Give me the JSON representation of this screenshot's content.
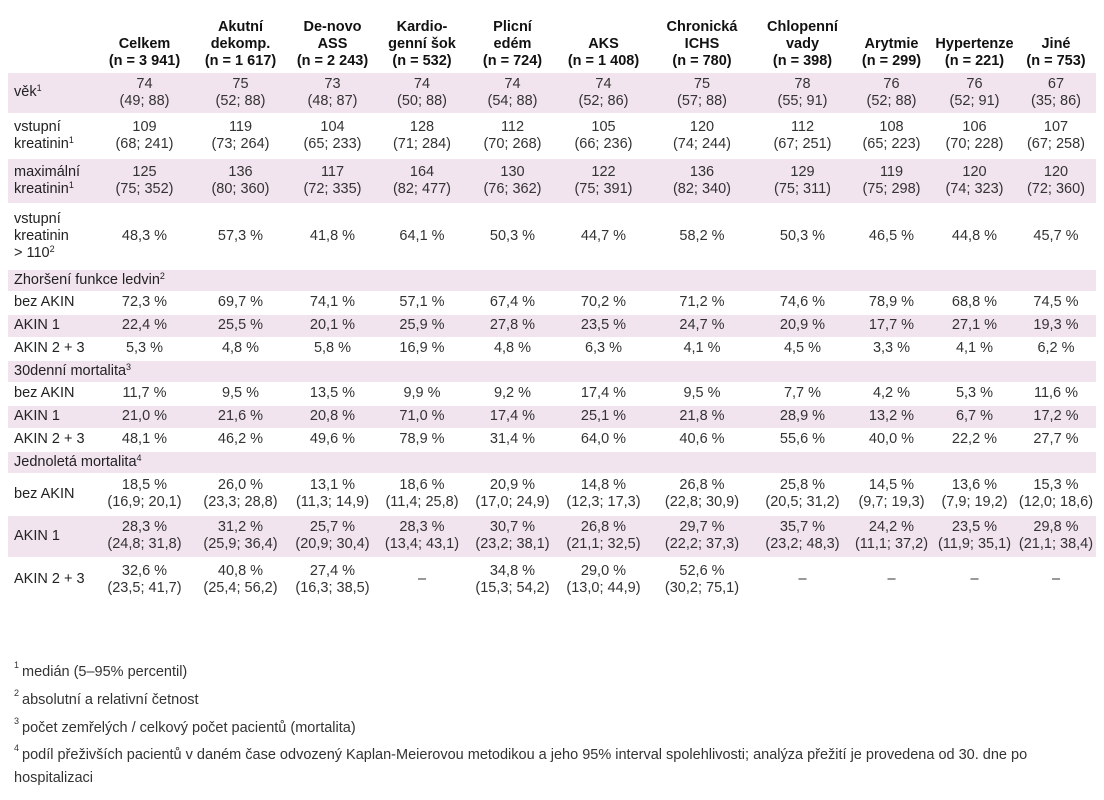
{
  "header": [
    "",
    [
      "Celkem",
      "(n = 3 941)"
    ],
    [
      "Akutní",
      "dekomp.",
      "(n = 1 617)"
    ],
    [
      "De-novo",
      "ASS",
      "(n = 2 243)"
    ],
    [
      "Kardio-",
      "genní šok",
      "(n = 532)"
    ],
    [
      "Plicní",
      "edém",
      "(n = 724)"
    ],
    [
      "AKS",
      "(n = 1 408)"
    ],
    [
      "Chronická",
      "ICHS",
      "(n = 780)"
    ],
    [
      "Chlopenní",
      "vady",
      "(n = 398)"
    ],
    [
      "Arytmie",
      "(n = 299)"
    ],
    [
      "Hypertenze",
      "(n = 221)"
    ],
    [
      "Jiné",
      "(n = 753)"
    ]
  ],
  "rows": [
    {
      "type": "data",
      "shade": true,
      "label": [
        "věk"
      ],
      "sup": "1",
      "cells": [
        [
          "74",
          "(49; 88)"
        ],
        [
          "75",
          "(52; 88)"
        ],
        [
          "73",
          "(48; 87)"
        ],
        [
          "74",
          "(50; 88)"
        ],
        [
          "74",
          "(54; 88)"
        ],
        [
          "74",
          "(52; 86)"
        ],
        [
          "75",
          "(57; 88)"
        ],
        [
          "78",
          "(55; 91)"
        ],
        [
          "76",
          "(52; 88)"
        ],
        [
          "76",
          "(52; 91)"
        ],
        [
          "67",
          "(35; 86)"
        ]
      ]
    },
    {
      "type": "data",
      "shade": false,
      "label": [
        "vstupní",
        "kreatinin"
      ],
      "sup": "1",
      "cells": [
        [
          "109",
          "(68; 241)"
        ],
        [
          "119",
          "(73; 264)"
        ],
        [
          "104",
          "(65; 233)"
        ],
        [
          "128",
          "(71; 284)"
        ],
        [
          "112",
          "(70; 268)"
        ],
        [
          "105",
          "(66; 236)"
        ],
        [
          "120",
          "(74; 244)"
        ],
        [
          "112",
          "(67; 251)"
        ],
        [
          "108",
          "(65; 223)"
        ],
        [
          "106",
          "(70; 228)"
        ],
        [
          "107",
          "(67; 258)"
        ]
      ]
    },
    {
      "type": "data",
      "shade": true,
      "label": [
        "maximální",
        "kreatinin"
      ],
      "sup": "1",
      "cells": [
        [
          "125",
          "(75; 352)"
        ],
        [
          "136",
          "(80; 360)"
        ],
        [
          "117",
          "(72; 335)"
        ],
        [
          "164",
          "(82; 477)"
        ],
        [
          "130",
          "(76; 362)"
        ],
        [
          "122",
          "(75; 391)"
        ],
        [
          "136",
          "(82; 340)"
        ],
        [
          "129",
          "(75; 311)"
        ],
        [
          "119",
          "(75; 298)"
        ],
        [
          "120",
          "(74; 323)"
        ],
        [
          "120",
          "(72; 360)"
        ]
      ]
    },
    {
      "type": "data",
      "shade": false,
      "label": [
        "vstupní",
        "kreatinin",
        "> 110"
      ],
      "sup": "2",
      "cells": [
        [
          "48,3 %"
        ],
        [
          "57,3 %"
        ],
        [
          "41,8 %"
        ],
        [
          "64,1 %"
        ],
        [
          "50,3 %"
        ],
        [
          "44,7 %"
        ],
        [
          "58,2 %"
        ],
        [
          "50,3 %"
        ],
        [
          "46,5 %"
        ],
        [
          "44,8 %"
        ],
        [
          "45,7 %"
        ]
      ]
    },
    {
      "type": "section",
      "shade": true,
      "label": "Zhoršení funkce ledvin",
      "sup": "2"
    },
    {
      "type": "data",
      "shade": false,
      "label": [
        "bez AKIN"
      ],
      "sup": "",
      "cells": [
        [
          "72,3 %"
        ],
        [
          "69,7 %"
        ],
        [
          "74,1 %"
        ],
        [
          "57,1 %"
        ],
        [
          "67,4 %"
        ],
        [
          "70,2 %"
        ],
        [
          "71,2 %"
        ],
        [
          "74,6 %"
        ],
        [
          "78,9 %"
        ],
        [
          "68,8 %"
        ],
        [
          "74,5 %"
        ]
      ]
    },
    {
      "type": "data",
      "shade": true,
      "label": [
        "AKIN 1"
      ],
      "sup": "",
      "cells": [
        [
          "22,4 %"
        ],
        [
          "25,5 %"
        ],
        [
          "20,1 %"
        ],
        [
          "25,9 %"
        ],
        [
          "27,8 %"
        ],
        [
          "23,5 %"
        ],
        [
          "24,7 %"
        ],
        [
          "20,9 %"
        ],
        [
          "17,7 %"
        ],
        [
          "27,1 %"
        ],
        [
          "19,3 %"
        ]
      ]
    },
    {
      "type": "data",
      "shade": false,
      "label": [
        "AKIN 2 + 3"
      ],
      "sup": "",
      "cells": [
        [
          "5,3 %"
        ],
        [
          "4,8 %"
        ],
        [
          "5,8 %"
        ],
        [
          "16,9 %"
        ],
        [
          "4,8 %"
        ],
        [
          "6,3 %"
        ],
        [
          "4,1 %"
        ],
        [
          "4,5 %"
        ],
        [
          "3,3 %"
        ],
        [
          "4,1 %"
        ],
        [
          "6,2 %"
        ]
      ]
    },
    {
      "type": "section",
      "shade": true,
      "label": "30denní mortalita",
      "sup": "3"
    },
    {
      "type": "data",
      "shade": false,
      "label": [
        "bez AKIN"
      ],
      "sup": "",
      "cells": [
        [
          "11,7 %"
        ],
        [
          "9,5 %"
        ],
        [
          "13,5 %"
        ],
        [
          "9,9 %"
        ],
        [
          "9,2 %"
        ],
        [
          "17,4 %"
        ],
        [
          "9,5 %"
        ],
        [
          "7,7 %"
        ],
        [
          "4,2 %"
        ],
        [
          "5,3 %"
        ],
        [
          "11,6 %"
        ]
      ]
    },
    {
      "type": "data",
      "shade": true,
      "label": [
        "AKIN 1"
      ],
      "sup": "",
      "cells": [
        [
          "21,0 %"
        ],
        [
          "21,6 %"
        ],
        [
          "20,8 %"
        ],
        [
          "71,0 %"
        ],
        [
          "17,4 %"
        ],
        [
          "25,1 %"
        ],
        [
          "21,8 %"
        ],
        [
          "28,9 %"
        ],
        [
          "13,2 %"
        ],
        [
          "6,7 %"
        ],
        [
          "17,2 %"
        ]
      ]
    },
    {
      "type": "data",
      "shade": false,
      "label": [
        "AKIN 2 + 3"
      ],
      "sup": "",
      "cells": [
        [
          "48,1 %"
        ],
        [
          "46,2 %"
        ],
        [
          "49,6 %"
        ],
        [
          "78,9 %"
        ],
        [
          "31,4 %"
        ],
        [
          "64,0 %"
        ],
        [
          "40,6 %"
        ],
        [
          "55,6 %"
        ],
        [
          "40,0 %"
        ],
        [
          "22,2 %"
        ],
        [
          "27,7 %"
        ]
      ]
    },
    {
      "type": "section",
      "shade": true,
      "label": "Jednoletá mortalita",
      "sup": "4"
    },
    {
      "type": "data",
      "shade": false,
      "label": [
        "bez AKIN"
      ],
      "sup": "",
      "cells": [
        [
          "18,5 %",
          "(16,9; 20,1)"
        ],
        [
          "26,0 %",
          "(23,3; 28,8)"
        ],
        [
          "13,1 %",
          "(11,3; 14,9)"
        ],
        [
          "18,6 %",
          "(11,4; 25,8)"
        ],
        [
          "20,9 %",
          "(17,0; 24,9)"
        ],
        [
          "14,8 %",
          "(12,3; 17,3)"
        ],
        [
          "26,8 %",
          "(22,8; 30,9)"
        ],
        [
          "25,8 %",
          "(20,5; 31,2)"
        ],
        [
          "14,5 %",
          "(9,7; 19,3)"
        ],
        [
          "13,6 %",
          "(7,9; 19,2)"
        ],
        [
          "15,3 %",
          "(12,0; 18,6)"
        ]
      ]
    },
    {
      "type": "data",
      "shade": true,
      "label": [
        "AKIN 1"
      ],
      "sup": "",
      "cells": [
        [
          "28,3 %",
          "(24,8; 31,8)"
        ],
        [
          "31,2 %",
          "(25,9; 36,4)"
        ],
        [
          "25,7 %",
          "(20,9; 30,4)"
        ],
        [
          "28,3 %",
          "(13,4; 43,1)"
        ],
        [
          "30,7 %",
          "(23,2; 38,1)"
        ],
        [
          "26,8 %",
          "(21,1; 32,5)"
        ],
        [
          "29,7 %",
          "(22,2; 37,3)"
        ],
        [
          "35,7 %",
          "(23,2; 48,3)"
        ],
        [
          "24,2 %",
          "(11,1; 37,2)"
        ],
        [
          "23,5 %",
          "(11,9; 35,1)"
        ],
        [
          "29,8 %",
          "(21,1; 38,4)"
        ]
      ]
    },
    {
      "type": "data",
      "shade": false,
      "label": [
        "AKIN 2 + 3"
      ],
      "sup": "",
      "cells": [
        [
          "32,6 %",
          "(23,5; 41,7)"
        ],
        [
          "40,8 %",
          "(25,4; 56,2)"
        ],
        [
          "27,4 %",
          "(16,3; 38,5)"
        ],
        [
          "–"
        ],
        [
          "34,8 %",
          "(15,3; 54,2)"
        ],
        [
          "29,0 %",
          "(13,0; 44,9)"
        ],
        [
          "52,6 %",
          "(30,2; 75,1)"
        ],
        [
          "–"
        ],
        [
          "–"
        ],
        [
          "–"
        ],
        [
          "–"
        ]
      ]
    }
  ],
  "notes": [
    {
      "sup": "1",
      "text": "medián (5–95% percentil)"
    },
    {
      "sup": "2",
      "text": "absolutní a relativní četnost"
    },
    {
      "sup": "3",
      "text": "počet zemřelých / celkový počet pacientů (mortalita)"
    },
    {
      "sup": "4",
      "text": "podíl přeživších pacientů v daném čase odvozený Kaplan-Meierovou metodikou a jeho 95% interval spolehlivosti; analýza přežití je provedena od 30. dne po hospitalizaci"
    }
  ]
}
